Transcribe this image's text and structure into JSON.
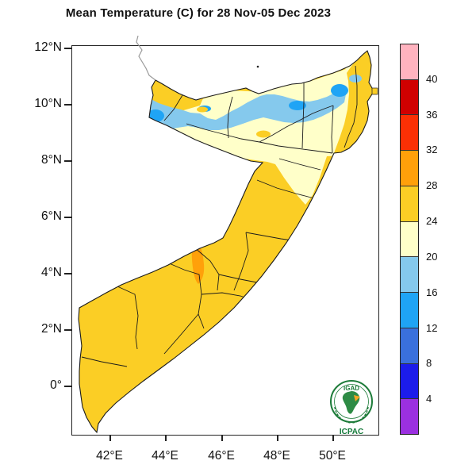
{
  "title": "Mean Temperature (C) for 28 Nov-05 Dec 2023",
  "x_axis": {
    "labels": [
      "42°E",
      "44°E",
      "46°E",
      "48°E",
      "50°E"
    ]
  },
  "y_axis": {
    "labels": [
      "12°N",
      "10°N",
      "8°N",
      "6°N",
      "4°N",
      "2°N",
      "0°"
    ]
  },
  "colorbar": {
    "tick_labels": [
      "40",
      "36",
      "32",
      "28",
      "24",
      "20",
      "16",
      "12",
      "8",
      "4"
    ],
    "segments": [
      {
        "value_min": 40,
        "value_max": null,
        "color": "#FFB3BF"
      },
      {
        "value_min": 36,
        "value_max": 40,
        "color": "#D00000"
      },
      {
        "value_min": 32,
        "value_max": 36,
        "color": "#FB3005"
      },
      {
        "value_min": 28,
        "value_max": 32,
        "color": "#FFA00A"
      },
      {
        "value_min": 24,
        "value_max": 28,
        "color": "#FBCE25"
      },
      {
        "value_min": 20,
        "value_max": 24,
        "color": "#FFFFC9"
      },
      {
        "value_min": 16,
        "value_max": 20,
        "color": "#85C9ED"
      },
      {
        "value_min": 12,
        "value_max": 16,
        "color": "#1FA4F5"
      },
      {
        "value_min": 8,
        "value_max": 12,
        "color": "#3A70DC"
      },
      {
        "value_min": 4,
        "value_max": 8,
        "color": "#1C1CEA"
      },
      {
        "value_min": null,
        "value_max": 4,
        "color": "#9B30E0"
      }
    ]
  },
  "map": {
    "sea_color": "#FFFFFF",
    "land_outline": "#1b1b1b",
    "neighbor_border_gray": "#9a9a9a",
    "fills": {
      "band_20_24": "#FFFFC9",
      "band_24_28": "#FBCE25",
      "band_28_32": "#FFA00A",
      "band_16_20": "#85C9ED",
      "band_12_16": "#1FA4F5",
      "cream_spot": "#FFFFDE"
    },
    "logo": {
      "top_text": "IGAD",
      "bottom_text": "ICPAC",
      "green": "#1E7C3A",
      "dark_green": "#157A3B",
      "orange": "#F5A623"
    }
  }
}
